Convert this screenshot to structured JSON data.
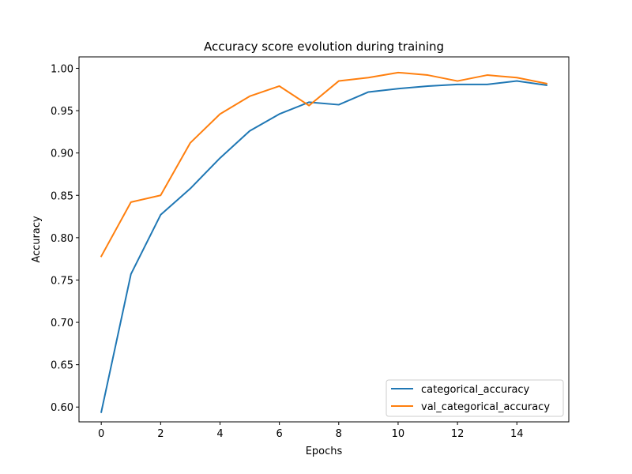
{
  "chart_data": {
    "type": "line",
    "title": "Accuracy score evolution during training",
    "xlabel": "Epochs",
    "ylabel": "Accuracy",
    "x": [
      0,
      1,
      2,
      3,
      4,
      5,
      6,
      7,
      8,
      9,
      10,
      11,
      12,
      13,
      14,
      15
    ],
    "xlim": [
      -0.75,
      15.75
    ],
    "ylim": [
      0.5825,
      1.0135
    ],
    "xticks": [
      0,
      2,
      4,
      6,
      8,
      10,
      12,
      14
    ],
    "yticks": [
      0.6,
      0.65,
      0.7,
      0.75,
      0.8,
      0.85,
      0.9,
      0.95,
      1.0
    ],
    "ytick_labels": [
      "0.60",
      "0.65",
      "0.70",
      "0.75",
      "0.80",
      "0.85",
      "0.90",
      "0.95",
      "1.00"
    ],
    "grid": false,
    "legend_position": "lower-right",
    "series": [
      {
        "name": "categorical_accuracy",
        "color": "#1f77b4",
        "values": [
          0.594,
          0.757,
          0.827,
          0.858,
          0.894,
          0.926,
          0.946,
          0.96,
          0.957,
          0.972,
          0.976,
          0.979,
          0.981,
          0.981,
          0.985,
          0.98
        ]
      },
      {
        "name": "val_categorical_accuracy",
        "color": "#ff7f0e",
        "values": [
          0.778,
          0.842,
          0.85,
          0.912,
          0.946,
          0.967,
          0.979,
          0.956,
          0.985,
          0.989,
          0.995,
          0.992,
          0.985,
          0.992,
          0.989,
          0.982
        ]
      }
    ]
  }
}
